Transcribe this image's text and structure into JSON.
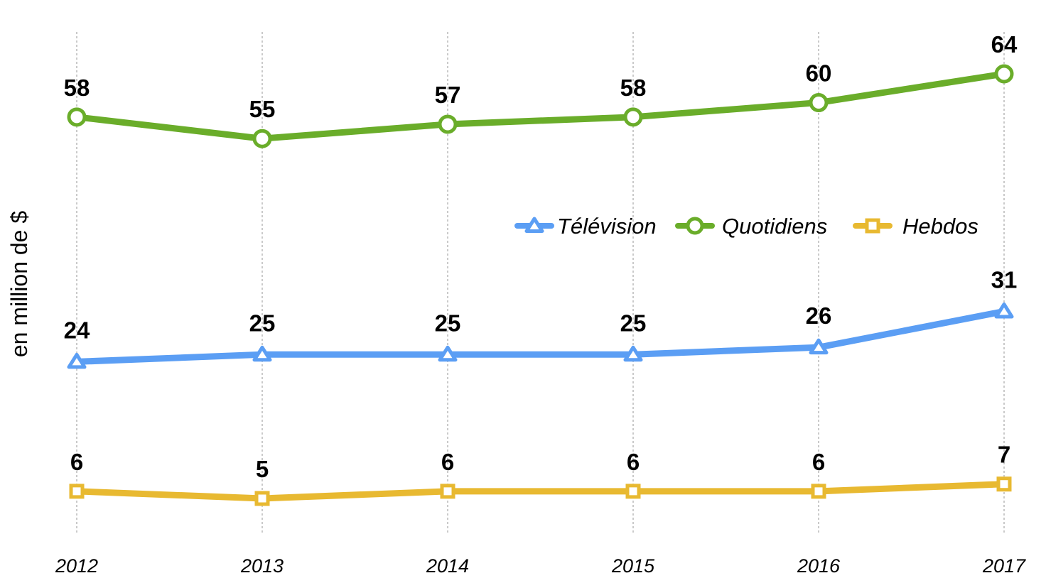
{
  "chart_data": {
    "type": "line",
    "title": "",
    "xlabel": "",
    "ylabel": "en million de $",
    "x": [
      "2012",
      "2013",
      "2014",
      "2015",
      "2016",
      "2017"
    ],
    "ylim": [
      -1,
      70
    ],
    "grid": "vertical dotted lines",
    "legend_placement": "center-right",
    "series": [
      {
        "name": "Télévision",
        "values": [
          24,
          25,
          25,
          25,
          26,
          31
        ],
        "color": "#5b9ef4",
        "marker": "triangle"
      },
      {
        "name": "Quotidiens",
        "values": [
          58,
          55,
          57,
          58,
          60,
          64
        ],
        "color": "#6aad2a",
        "marker": "circle"
      },
      {
        "name": "Hebdos",
        "values": [
          6,
          5,
          6,
          6,
          6,
          7
        ],
        "color": "#e8b931",
        "marker": "square"
      }
    ]
  }
}
